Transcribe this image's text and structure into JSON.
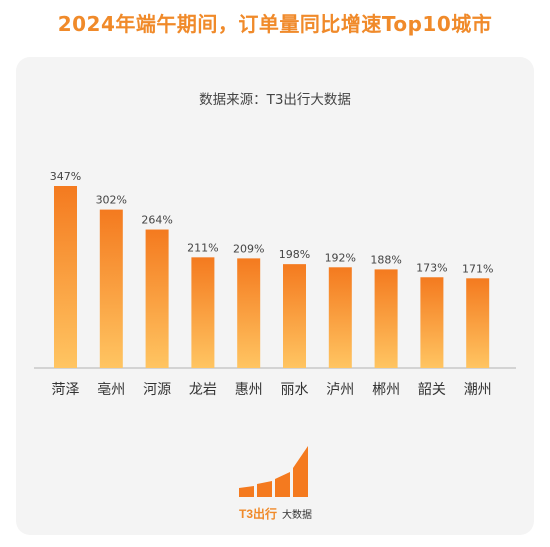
{
  "title": "2024年端午期间，订单量同比增速Top10城市",
  "subtitle": "数据来源：T3出行大数据",
  "colors": {
    "title": "#f08a2a",
    "bar_top": "#f47a1f",
    "bar_bottom": "#ffc562",
    "card_bg": "#f4f4f4"
  },
  "chart_data": {
    "type": "bar",
    "categories": [
      "菏泽",
      "亳州",
      "河源",
      "龙岩",
      "惠州",
      "丽水",
      "泸州",
      "郴州",
      "韶关",
      "潮州"
    ],
    "values": [
      347,
      302,
      264,
      211,
      209,
      198,
      192,
      188,
      173,
      171
    ],
    "value_labels": [
      "347%",
      "302%",
      "264%",
      "211%",
      "209%",
      "198%",
      "192%",
      "188%",
      "173%",
      "171%"
    ],
    "unit": "%",
    "ylim": [
      0,
      347
    ],
    "grid": false,
    "legend": "none"
  },
  "logo": {
    "brand": "T3出行",
    "suffix": "大数据"
  }
}
